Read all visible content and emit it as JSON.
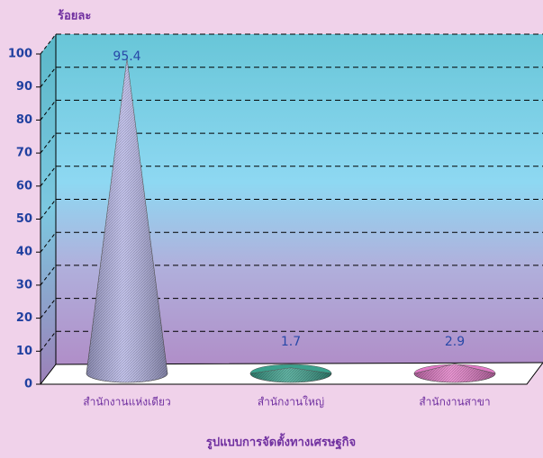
{
  "chart_data": {
    "type": "cone",
    "y_axis_label": "ร้อยละ",
    "x_axis_label": "รูปแบบการจัดตั้งทางเศรษฐกิจ",
    "categories": [
      "สำนักงานแห่งเดียว",
      "สำนักงานใหญ่",
      "สำนักงานสาขา"
    ],
    "values": [
      95.4,
      1.7,
      2.9
    ],
    "colors": [
      "#b4b4e6",
      "#3aa08c",
      "#e27ac6"
    ],
    "ylim": [
      0,
      100
    ],
    "yticks": [
      0,
      10,
      20,
      30,
      40,
      50,
      60,
      70,
      80,
      90,
      100
    ],
    "grid": true
  }
}
